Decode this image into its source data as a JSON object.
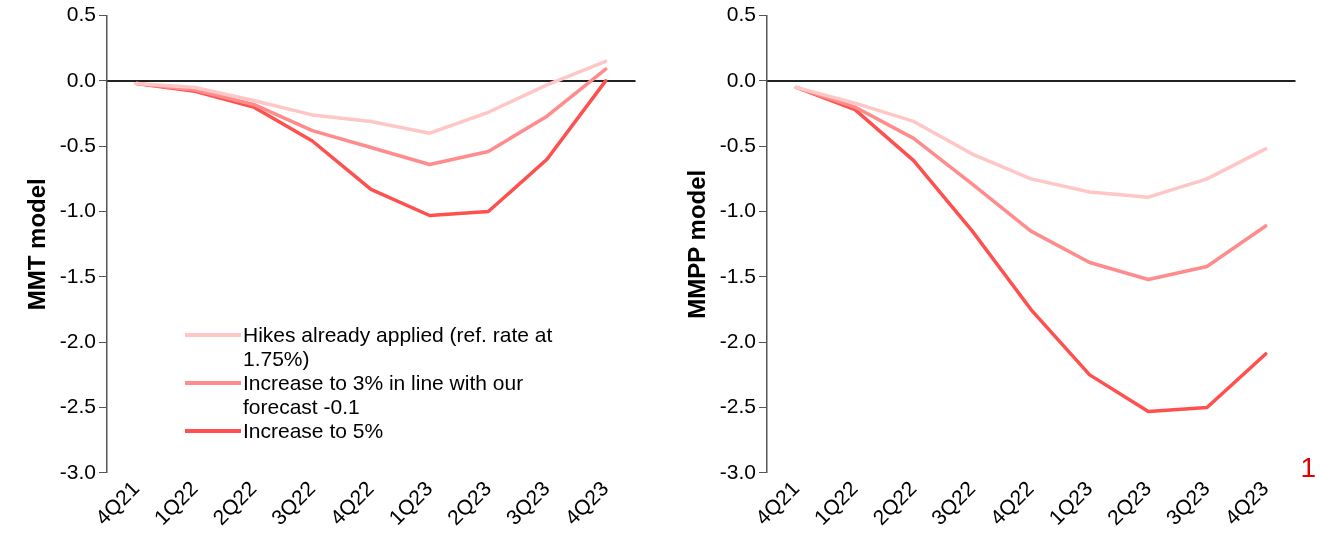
{
  "chart_data": [
    {
      "type": "line",
      "ylabel": "MMT model",
      "categories": [
        "4Q21",
        "1Q22",
        "2Q22",
        "3Q22",
        "4Q22",
        "1Q23",
        "2Q23",
        "3Q23",
        "4Q23"
      ],
      "series": [
        {
          "name": "Hikes already applied (ref. rate at 1.75%)",
          "color": "#ffc6c6",
          "values": [
            -0.02,
            -0.05,
            -0.15,
            -0.26,
            -0.31,
            -0.4,
            -0.24,
            -0.03,
            0.15
          ]
        },
        {
          "name": "Increase to 3% in line with our forecast -0.1",
          "color": "#ff8c8c",
          "values": [
            -0.02,
            -0.07,
            -0.18,
            -0.38,
            -0.51,
            -0.64,
            -0.54,
            -0.27,
            0.09
          ]
        },
        {
          "name": "Increase to 5%",
          "color": "#ff5050",
          "values": [
            -0.02,
            -0.08,
            -0.2,
            -0.46,
            -0.83,
            -1.03,
            -1.0,
            -0.6,
            0.0
          ]
        }
      ],
      "ylim": [
        -3,
        0.5
      ],
      "yticks": [
        {
          "value": 0.5,
          "label": "0.5"
        },
        {
          "value": 0,
          "label": "0.0"
        },
        {
          "value": -0.5,
          "label": "-0.5"
        },
        {
          "value": -1,
          "label": "-1.0"
        },
        {
          "value": -1.5,
          "label": "-1.5"
        },
        {
          "value": -2,
          "label": "-2.0"
        },
        {
          "value": -2.5,
          "label": "-2.5"
        },
        {
          "value": -3,
          "label": "-3.0"
        }
      ],
      "legend": "bottom",
      "marker": "none"
    },
    {
      "type": "line",
      "ylabel": "MMPP model",
      "categories": [
        "4Q21",
        "1Q22",
        "2Q22",
        "3Q22",
        "4Q22",
        "1Q23",
        "2Q23",
        "3Q23",
        "4Q23"
      ],
      "series": [
        {
          "color": "#ffc6c6",
          "values": [
            -0.05,
            -0.17,
            -0.31,
            -0.56,
            -0.75,
            -0.85,
            -0.89,
            -0.75,
            -0.52
          ]
        },
        {
          "color": "#ff8c8c",
          "values": [
            -0.05,
            -0.2,
            -0.44,
            -0.79,
            -1.15,
            -1.39,
            -1.52,
            -1.42,
            -1.11
          ]
        },
        {
          "color": "#ff5050",
          "values": [
            -0.05,
            -0.22,
            -0.61,
            -1.15,
            -1.75,
            -2.25,
            -2.53,
            -2.5,
            -2.09
          ]
        }
      ],
      "ylim": [
        -3,
        0.5
      ],
      "yticks": [
        {
          "value": 0.5,
          "label": "0.5"
        },
        {
          "value": 0,
          "label": "0.0"
        },
        {
          "value": -0.5,
          "label": "-0.5"
        },
        {
          "value": -1,
          "label": "-1.0"
        },
        {
          "value": -1.5,
          "label": "-1.5"
        },
        {
          "value": -2,
          "label": "-2.0"
        },
        {
          "value": -2.5,
          "label": "-2.5"
        },
        {
          "value": -3,
          "label": "-3.0"
        }
      ],
      "annotations": [
        "1"
      ],
      "marker": "none"
    }
  ]
}
